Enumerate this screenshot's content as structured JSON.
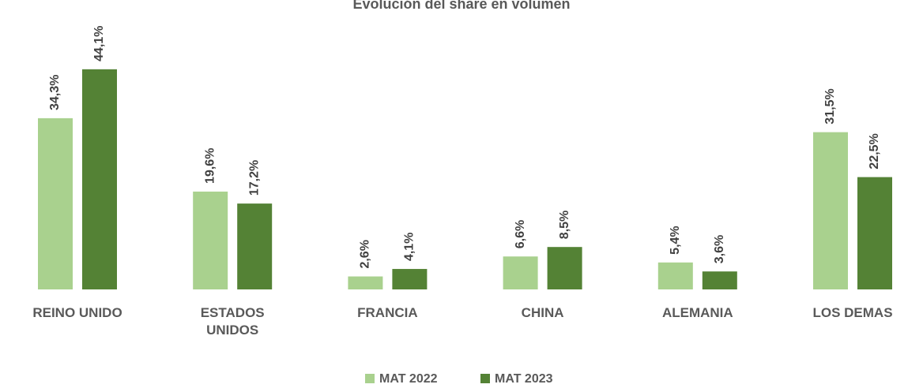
{
  "chart_data": {
    "type": "bar",
    "title": "Evolución del share en volumen",
    "categories": [
      "REINO UNIDO",
      "ESTADOS UNIDOS",
      "FRANCIA",
      "CHINA",
      "ALEMANIA",
      "LOS DEMAS"
    ],
    "series": [
      {
        "name": "MAT 2022",
        "color": "#a9d18e",
        "values": [
          34.3,
          19.6,
          2.6,
          6.6,
          5.4,
          31.5
        ],
        "value_labels": [
          "34,3%",
          "19,6%",
          "2,6%",
          "6,6%",
          "5,4%",
          "31,5%"
        ]
      },
      {
        "name": "MAT 2023",
        "color": "#548235",
        "values": [
          44.1,
          17.2,
          4.1,
          8.5,
          3.6,
          22.5
        ],
        "value_labels": [
          "44,1%",
          "17,2%",
          "4,1%",
          "8,5%",
          "3,6%",
          "22,5%"
        ]
      }
    ],
    "legend": "bottom"
  }
}
